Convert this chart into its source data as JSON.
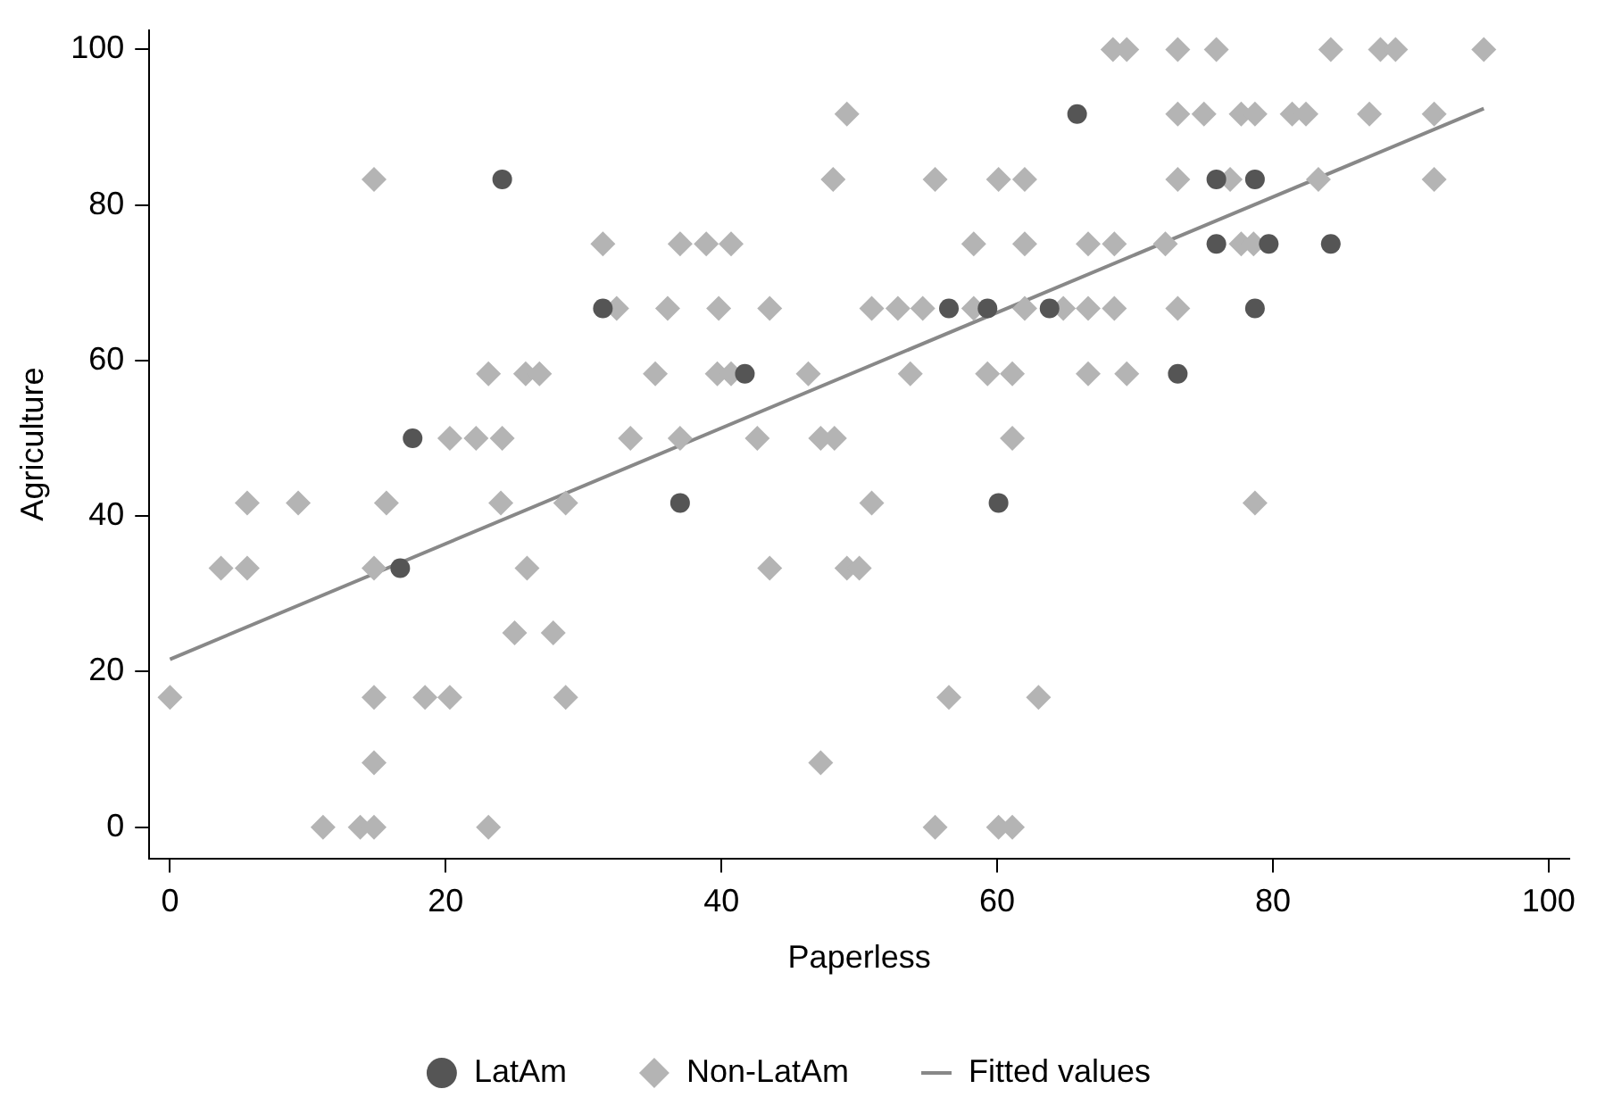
{
  "chart_data": {
    "type": "scatter",
    "xlabel": "Paperless",
    "ylabel": "Agriculture",
    "xlim": [
      -1.5,
      101.5
    ],
    "ylim": [
      -4,
      102.5
    ],
    "xticks": [
      0,
      20,
      40,
      60,
      80,
      100
    ],
    "yticks": [
      0,
      20,
      40,
      60,
      80,
      100
    ],
    "grid": false,
    "legend": "bottom",
    "series": [
      {
        "name": "LatAm",
        "marker": "circle",
        "color": "#555555",
        "x": [
          65.8,
          24.1,
          75.9,
          78.7,
          75.9,
          79.7,
          84.2,
          31.4,
          56.5,
          59.3,
          63.8,
          78.7,
          41.7,
          73.1,
          17.6,
          37.0,
          60.1,
          16.7
        ],
        "values": [
          91.7,
          83.3,
          83.3,
          83.3,
          75,
          75,
          75,
          66.7,
          66.7,
          66.7,
          66.7,
          66.7,
          58.3,
          58.3,
          50,
          41.7,
          41.7,
          33.3
        ]
      },
      {
        "name": "Non-LatAm",
        "marker": "diamond",
        "color": "#b4b4b4",
        "x": [
          68.4,
          69.4,
          73.1,
          75.9,
          84.2,
          87.8,
          88.9,
          95.3,
          49.1,
          73.1,
          75.0,
          77.7,
          78.7,
          81.4,
          82.4,
          87.0,
          91.7,
          14.8,
          48.1,
          55.5,
          60.1,
          62.0,
          73.1,
          76.9,
          83.3,
          91.7,
          31.4,
          37.0,
          38.9,
          40.7,
          58.3,
          62.0,
          66.6,
          68.5,
          72.2,
          77.7,
          78.6,
          32.4,
          36.1,
          39.8,
          43.5,
          50.9,
          52.8,
          54.6,
          58.3,
          62.0,
          64.8,
          66.6,
          68.5,
          73.1,
          23.1,
          25.8,
          26.8,
          35.2,
          39.7,
          40.7,
          46.3,
          53.7,
          59.3,
          61.1,
          66.6,
          69.4,
          20.3,
          22.2,
          24.1,
          33.4,
          37.0,
          42.6,
          47.2,
          48.2,
          61.1,
          5.6,
          9.3,
          15.7,
          24.0,
          28.7,
          50.9,
          78.7,
          3.7,
          5.6,
          14.8,
          25.9,
          43.5,
          49.1,
          50.0,
          25.0,
          27.8,
          0.0,
          14.8,
          18.5,
          20.3,
          28.7,
          56.5,
          63.0,
          14.8,
          47.2,
          11.1,
          13.8,
          14.8,
          23.1,
          55.5,
          60.1,
          61.1
        ],
        "values": [
          100,
          100,
          100,
          100,
          100,
          100,
          100,
          100,
          91.7,
          91.7,
          91.7,
          91.7,
          91.7,
          91.7,
          91.7,
          91.7,
          91.7,
          83.3,
          83.3,
          83.3,
          83.3,
          83.3,
          83.3,
          83.3,
          83.3,
          83.3,
          75,
          75,
          75,
          75,
          75,
          75,
          75,
          75,
          75,
          75,
          75,
          66.7,
          66.7,
          66.7,
          66.7,
          66.7,
          66.7,
          66.7,
          66.7,
          66.7,
          66.7,
          66.7,
          66.7,
          66.7,
          58.3,
          58.3,
          58.3,
          58.3,
          58.3,
          58.3,
          58.3,
          58.3,
          58.3,
          58.3,
          58.3,
          58.3,
          50,
          50,
          50,
          50,
          50,
          50,
          50,
          50,
          50,
          41.7,
          41.7,
          41.7,
          41.7,
          41.7,
          41.7,
          41.7,
          33.3,
          33.3,
          33.3,
          33.3,
          33.3,
          33.3,
          33.3,
          25,
          25,
          16.7,
          16.7,
          16.7,
          16.7,
          16.7,
          16.7,
          16.7,
          8.3,
          8.3,
          0,
          0,
          0,
          0,
          0,
          0,
          0
        ]
      },
      {
        "name": "Fitted values",
        "type": "line",
        "marker": "none",
        "line_style": "solid",
        "color": "#888888",
        "x": [
          0,
          95.3
        ],
        "values": [
          21.6,
          92.4
        ]
      }
    ]
  }
}
